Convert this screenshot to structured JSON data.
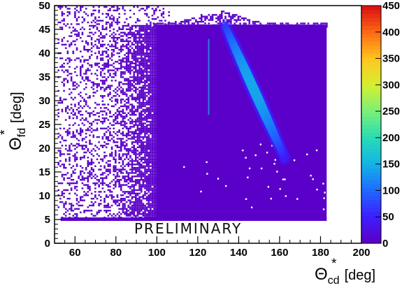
{
  "chart_data": {
    "type": "heatmap",
    "title": "",
    "xlabel": {
      "symbol": "Θ",
      "sup": "*",
      "sub": "cd",
      "unit": "[deg]"
    },
    "ylabel": {
      "symbol": "Θ",
      "sup": "*",
      "sub": "fd",
      "unit": "[deg]"
    },
    "xlim": [
      50,
      200
    ],
    "ylim": [
      0,
      50
    ],
    "x_ticks": [
      60,
      80,
      100,
      120,
      140,
      160,
      180,
      200
    ],
    "y_ticks": [
      0,
      5,
      10,
      15,
      20,
      25,
      30,
      35,
      40,
      45,
      50
    ],
    "z_range": [
      0,
      450
    ],
    "z_ticks": [
      0,
      50,
      100,
      150,
      200,
      250,
      300,
      350,
      400,
      450
    ],
    "colormap": [
      "#5a00c8",
      "#3c20ff",
      "#1e6cff",
      "#14b4e6",
      "#28dcb4",
      "#78f07a",
      "#d2f032",
      "#ffc81e",
      "#ff6e14",
      "#dc1414"
    ],
    "features": {
      "ridge": {
        "start": {
          "x": 133,
          "y": 46
        },
        "end": {
          "x": 163,
          "y": 17.5
        },
        "peak_counts": 140
      },
      "dense_region": {
        "x_min": 94,
        "x_max": 183,
        "y_min": 5,
        "y_max": 46
      },
      "sparse_region": {
        "x_min": 50,
        "x_max": 94,
        "y_min": 5,
        "y_max": 50
      },
      "vertical_streak": {
        "x": 125,
        "y_min": 27,
        "y_max": 43
      },
      "floor_band": {
        "x_min": 50,
        "x_max": 183,
        "y": 5
      }
    },
    "grid": false,
    "colorbar": "right",
    "watermark": "PRELIMINARY"
  }
}
